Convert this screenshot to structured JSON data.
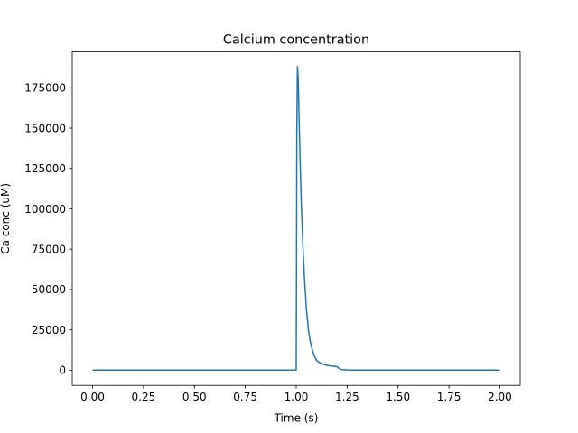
{
  "chart_data": {
    "type": "line",
    "title": "Calcium concentration",
    "xlabel": "Time (s)",
    "ylabel": "Ca conc (uM)",
    "xlim": [
      -0.1,
      2.1
    ],
    "ylim": [
      -9400,
      197200
    ],
    "xticks": [
      0,
      0.25,
      0.5,
      0.75,
      1.0,
      1.25,
      1.5,
      1.75,
      2.0
    ],
    "xtick_labels": [
      "0.00",
      "0.25",
      "0.50",
      "0.75",
      "1.00",
      "1.25",
      "1.50",
      "1.75",
      "2.00"
    ],
    "yticks": [
      0,
      25000,
      50000,
      75000,
      100000,
      125000,
      150000,
      175000
    ],
    "ytick_labels": [
      "0",
      "25000",
      "50000",
      "75000",
      "100000",
      "125000",
      "150000",
      "175000"
    ],
    "grid": false,
    "line_color": "#1f77b4",
    "series": [
      {
        "x": [
          0,
          0.5,
          0.999,
          1.0,
          1.003,
          1.006,
          1.01,
          1.015,
          1.02,
          1.025,
          1.03,
          1.035,
          1.04,
          1.045,
          1.05,
          1.06,
          1.07,
          1.08,
          1.09,
          1.1,
          1.12,
          1.14,
          1.16,
          1.18,
          1.2,
          1.21,
          1.22,
          1.25,
          1.3,
          1.5,
          1.75,
          2.0
        ],
        "y": [
          100,
          100,
          100,
          100,
          150000,
          188000,
          180000,
          150000,
          125000,
          103000,
          86000,
          71000,
          58000,
          48000,
          38000,
          25000,
          17000,
          12000,
          8500,
          6000,
          4200,
          3300,
          2800,
          2500,
          2200,
          1200,
          400,
          150,
          100,
          100,
          100,
          100
        ]
      }
    ]
  }
}
